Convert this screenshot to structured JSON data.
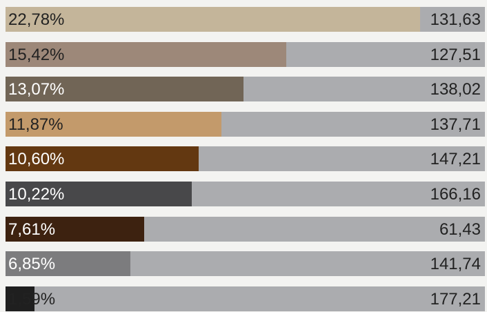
{
  "chart_data": {
    "type": "bar",
    "orientation": "horizontal",
    "title": "",
    "xlabel": "",
    "ylabel": "",
    "xlim": [
      0,
      22.78
    ],
    "grid": false,
    "legend": "none",
    "background_color": "#abacaf",
    "rows": [
      {
        "percent": 22.78,
        "percent_label": "22,78%",
        "value_label": "131,63",
        "color": "#c4b59a",
        "label_color": "dark"
      },
      {
        "percent": 15.42,
        "percent_label": "15,42%",
        "value_label": "127,51",
        "color": "#9d8879",
        "label_color": "dark"
      },
      {
        "percent": 13.07,
        "percent_label": "13,07%",
        "value_label": "138,02",
        "color": "#716556",
        "label_color": "light"
      },
      {
        "percent": 11.87,
        "percent_label": "11,87%",
        "value_label": "137,71",
        "color": "#c39a6b",
        "label_color": "dark"
      },
      {
        "percent": 10.6,
        "percent_label": "10,60%",
        "value_label": "147,21",
        "color": "#633811",
        "label_color": "light"
      },
      {
        "percent": 10.22,
        "percent_label": "10,22%",
        "value_label": "166,16",
        "color": "#48484a",
        "label_color": "light"
      },
      {
        "percent": 7.61,
        "percent_label": "7,61%",
        "value_label": "61,43",
        "color": "#3d2210",
        "label_color": "light"
      },
      {
        "percent": 6.85,
        "percent_label": "6,85%",
        "value_label": "141,74",
        "color": "#7c7c7e",
        "label_color": "light"
      },
      {
        "percent": 1.59,
        "percent_label": "1,59%",
        "value_label": "177,21",
        "color": "#1f1f1f",
        "label_color": "dark"
      }
    ]
  }
}
